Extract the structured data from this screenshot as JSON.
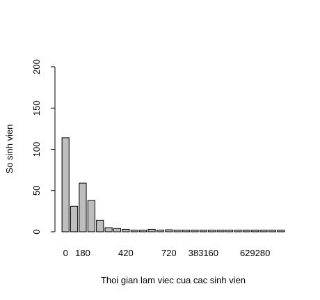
{
  "chart_data": {
    "type": "bar",
    "xlabel": "Thoi gian lam viec cua cac sinh vien",
    "ylabel": "So sinh vien",
    "ylim": [
      0,
      200
    ],
    "yticks": [
      0,
      50,
      100,
      150,
      200
    ],
    "x_tick_labels": [
      "0",
      "180",
      "420",
      "720",
      "383160",
      "629280"
    ],
    "bar_fill": "#bebebe",
    "bar_stroke": "#000000",
    "grid": false,
    "legend": "none",
    "values": [
      114,
      31,
      59,
      38,
      14,
      5,
      4,
      3,
      2,
      2,
      3,
      2,
      2.5,
      2,
      2,
      2,
      2,
      2,
      2,
      2,
      2,
      2,
      2,
      2,
      2,
      2
    ]
  }
}
